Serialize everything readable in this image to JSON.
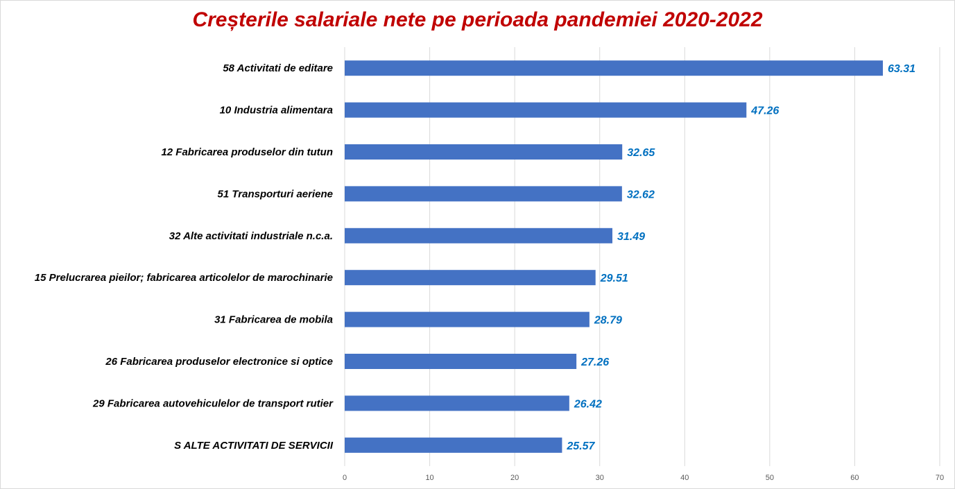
{
  "chart_data": {
    "type": "bar",
    "orientation": "horizontal",
    "title": "Creșterile salariale nete pe perioada pandemiei 2020-2022",
    "categories": [
      "58 Activitati de editare",
      "10 Industria alimentara",
      "12 Fabricarea produselor din tutun",
      "51 Transporturi aeriene",
      "32 Alte activitati industriale n.c.a.",
      "15 Prelucrarea pieilor; fabricarea articolelor de marochinarie",
      "31 Fabricarea de mobila",
      "26 Fabricarea produselor electronice si optice",
      "29 Fabricarea autovehiculelor de transport rutier",
      "S ALTE ACTIVITATI DE SERVICII"
    ],
    "values": [
      63.31,
      47.26,
      32.65,
      32.62,
      31.49,
      29.51,
      28.79,
      27.26,
      26.42,
      25.57
    ],
    "value_labels": [
      "63.31",
      "47.26",
      "32.65",
      "32.62",
      "31.49",
      "29.51",
      "28.79",
      "27.26",
      "26.42",
      "25.57"
    ],
    "xlim": [
      0,
      70
    ],
    "xticks": [
      "0",
      "10",
      "20",
      "30",
      "40",
      "50",
      "60",
      "70"
    ],
    "grid": true,
    "legend": "none",
    "colors": {
      "bar": "#4472c4",
      "label": "#0070c0",
      "title": "#c00000",
      "grid": "#d9d9d9"
    }
  }
}
